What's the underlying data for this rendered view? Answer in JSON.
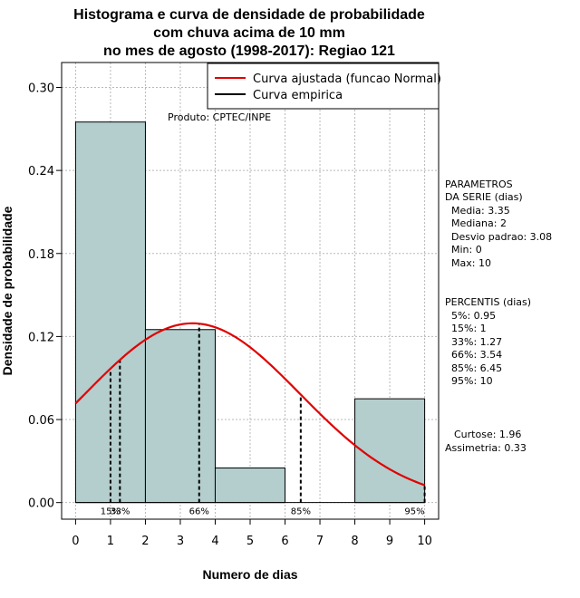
{
  "chart_data": {
    "type": "bar",
    "title_lines": [
      "Histograma e curva de densidade de probabilidade",
      "com chuva acima de 10 mm",
      "no mes de agosto (1998-2017): Regiao 121"
    ],
    "xlabel": "Numero de dias",
    "ylabel": "Densidade de probabilidade",
    "xlim": [
      -0.4,
      10.4
    ],
    "ylim": [
      -0.012,
      0.318
    ],
    "x_ticks": [
      "0",
      "1",
      "2",
      "3",
      "4",
      "5",
      "6",
      "7",
      "8",
      "9",
      "10"
    ],
    "y_ticks": [
      "0.00",
      "0.06",
      "0.12",
      "0.18",
      "0.24",
      "0.30"
    ],
    "y_tick_values": [
      0,
      0.06,
      0.12,
      0.18,
      0.24,
      0.3
    ],
    "bins": [
      {
        "x0": 0,
        "x1": 2,
        "density": 0.275
      },
      {
        "x0": 2,
        "x1": 4,
        "density": 0.125
      },
      {
        "x0": 4,
        "x1": 6,
        "density": 0.025
      },
      {
        "x0": 6,
        "x1": 8,
        "density": 0.0
      },
      {
        "x0": 8,
        "x1": 10,
        "density": 0.075
      }
    ],
    "bar_color": "#b4cdcd",
    "normal_curve": {
      "mean": 3.35,
      "sd": 3.08,
      "x_from": 0,
      "x_to": 10,
      "color": "#e00000"
    },
    "percentile_lines": [
      {
        "label": "15%",
        "x": 1.0
      },
      {
        "label": "33%",
        "x": 1.27
      },
      {
        "label": "66%",
        "x": 3.54
      },
      {
        "label": "85%",
        "x": 6.45
      },
      {
        "label": "95%",
        "x": 10
      }
    ],
    "percentile_label_texts": [
      "15%",
      "33%",
      "66%",
      "85%",
      "95%"
    ],
    "legend": [
      {
        "label": "Curva ajustada (funcao Normal)",
        "color": "#e00000"
      },
      {
        "label": "Curva empirica",
        "color": "#000000"
      }
    ],
    "legend_position": "top-right",
    "annotation": "Produto: CPTEC/INPE",
    "grid": true
  },
  "side_panel": {
    "params_title_1": "PARAMETROS",
    "params_title_2": "DA SERIE (dias)",
    "params": [
      "Media: 3.35",
      "Mediana: 2",
      "Desvio padrao: 3.08",
      "Min: 0",
      "Max: 10"
    ],
    "percentis_title": "PERCENTIS (dias)",
    "percentis": [
      "5%: 0.95",
      "15%: 1",
      "33%: 1.27",
      "66%: 3.54",
      "85%: 6.45",
      "95%: 10"
    ],
    "curtose": "Curtose: 1.96",
    "assimetria": "Assimetria: 0.33"
  }
}
